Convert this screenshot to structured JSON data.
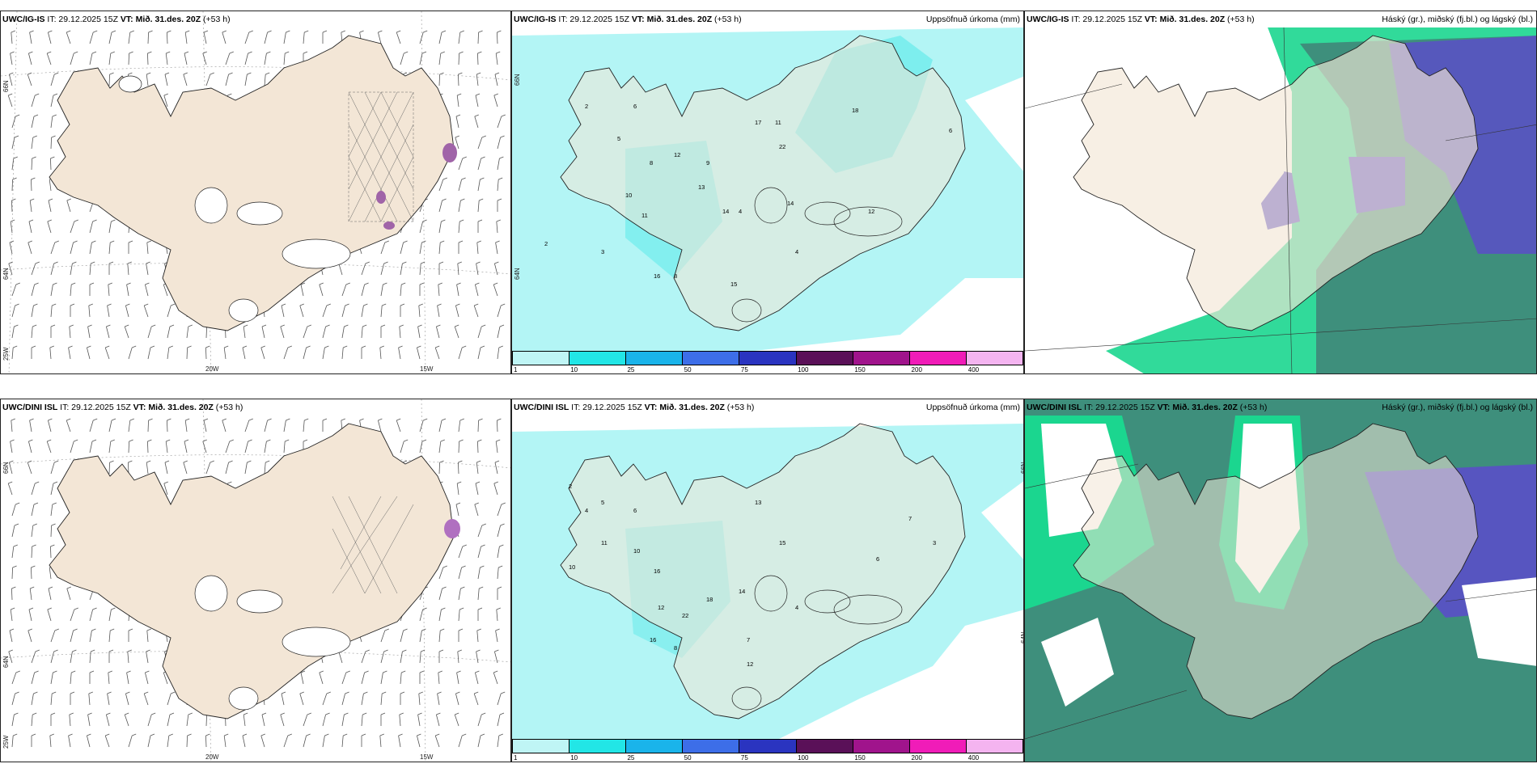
{
  "rows": [
    {
      "model": "UWC/IG-IS",
      "it": "IT: 29.12.2025 15Z",
      "vt_label": "VT:",
      "vt_value": "Mið. 31.des. 20Z",
      "lead": "(+53 h)"
    },
    {
      "model": "UWC/DINI ISL",
      "it": "IT: 29.12.2025 15Z",
      "vt_label": "VT:",
      "vt_value": "Mið. 31.des. 20Z",
      "lead": "(+53 h)"
    }
  ],
  "precip_title": "Uppsöfnuð úrkoma (mm)",
  "cloud_title": "Háský (gr.), miðský (fj.bl.) og lágský (bl.)",
  "lon_labels": [
    "20W",
    "15W"
  ],
  "lat_labels": [
    "66N",
    "64N",
    "25W"
  ],
  "lat_labels_right": [
    "66N",
    "64N"
  ],
  "colorbar": {
    "labels": [
      "1",
      "10",
      "25",
      "50",
      "75",
      "100",
      "150",
      "200",
      "400"
    ],
    "colors": [
      "#bff5f5",
      "#22e6e6",
      "#1ab4ea",
      "#3d6ee8",
      "#2a34c0",
      "#5a1058",
      "#a0148c",
      "#f01cb8",
      "#f4b4f0"
    ]
  },
  "colors": {
    "land": "#f3e6d6",
    "precip_light": "#b3f5f5",
    "precip_mid": "#3ce6e6",
    "cloud_high": "#3e8f7c",
    "cloud_mid": "#1bd68f",
    "cloud_low": "#5a4fc8"
  },
  "top_precip_values": [
    "2",
    "5",
    "6",
    "8",
    "10",
    "11",
    "12",
    "13",
    "14",
    "17",
    "22",
    "11",
    "14",
    "16",
    "8",
    "18",
    "12",
    "15",
    "2",
    "3",
    "4",
    "6",
    "9",
    "4"
  ],
  "bottom_precip_values": [
    "2",
    "4",
    "5",
    "6",
    "11",
    "10",
    "16",
    "12",
    "13",
    "15",
    "14",
    "22",
    "18",
    "10",
    "7",
    "3",
    "8",
    "12",
    "16",
    "4",
    "7",
    "6"
  ]
}
